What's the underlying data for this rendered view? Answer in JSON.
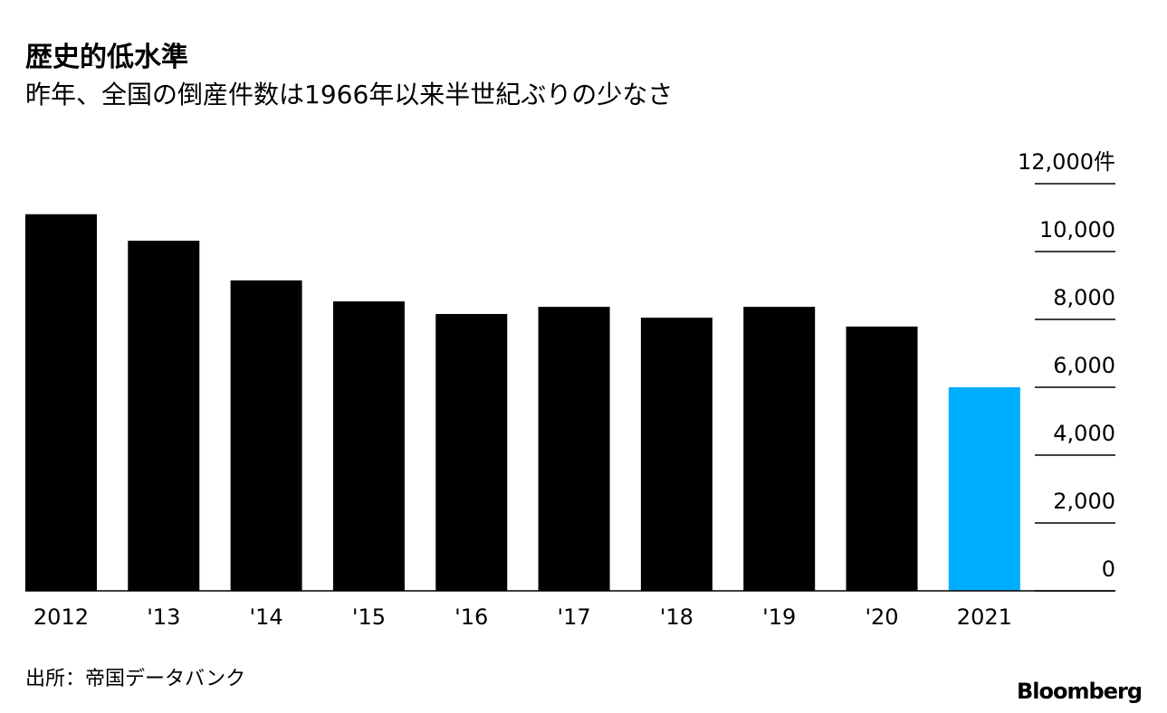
{
  "chart_data": {
    "type": "bar",
    "title": "歴史的低水準",
    "subtitle": "昨年、全国の倒産件数は1966年以来半世紀ぶりの少なさ",
    "categories": [
      "2012",
      "'13",
      "'14",
      "'15",
      "'16",
      "'17",
      "'18",
      "'19",
      "'20",
      "2021"
    ],
    "values": [
      11100,
      10320,
      9150,
      8530,
      8160,
      8370,
      8050,
      8370,
      7790,
      6000
    ],
    "colors": [
      "#000000",
      "#000000",
      "#000000",
      "#000000",
      "#000000",
      "#000000",
      "#000000",
      "#000000",
      "#000000",
      "#00aeff"
    ],
    "ylim": [
      0,
      12000
    ],
    "yticks": [
      0,
      {
        "value": 2000,
        "label": "2,000"
      },
      {
        "value": 4000,
        "label": "4,000"
      },
      {
        "value": 6000,
        "label": "6,000"
      },
      {
        "value": 8000,
        "label": "8,000"
      },
      {
        "value": 10000,
        "label": "10,000"
      },
      {
        "value": 12000,
        "label": "12,000件"
      }
    ],
    "source": "出所：帝国データバンク",
    "brand": "Bloomberg"
  }
}
